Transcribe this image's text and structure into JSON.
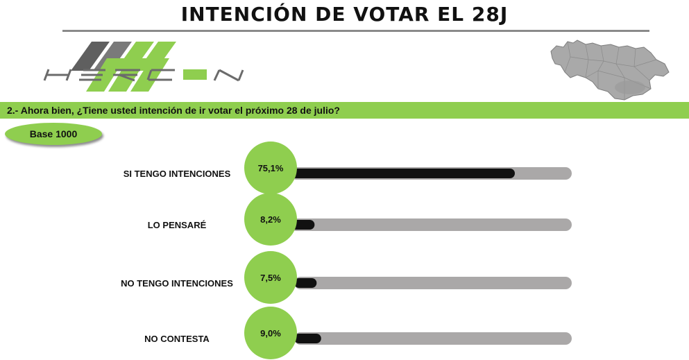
{
  "header": {
    "title": "INTENCIÓN DE VOTAR EL 28J",
    "logo_text": "HERCON"
  },
  "question": {
    "text": "2.- Ahora bien, ¿Tiene usted intención de ir votar el próximo 28 de julio?"
  },
  "base": {
    "label": "Base 1000"
  },
  "colors": {
    "accent_green": "#8fce4f",
    "bar_fill": "#111111",
    "bar_track": "#aaa8a8",
    "logo_gray": "#5a5a5a"
  },
  "icons": {
    "logo": "hercon-logo-icon",
    "map": "venezuela-map-icon"
  },
  "chart_data": {
    "type": "bar",
    "orientation": "horizontal",
    "categories": [
      "SI TENGO INTENCIONES",
      "LO PENSARÉ",
      "NO TENGO INTENCIONES",
      "NO CONTESTA"
    ],
    "values": [
      75.1,
      8.2,
      7.5,
      9.0
    ],
    "value_labels": [
      "75,1%",
      "8,2%",
      "7,5%",
      "9,0%"
    ],
    "xlim": [
      0,
      100
    ],
    "grid": false,
    "legend": "none"
  }
}
